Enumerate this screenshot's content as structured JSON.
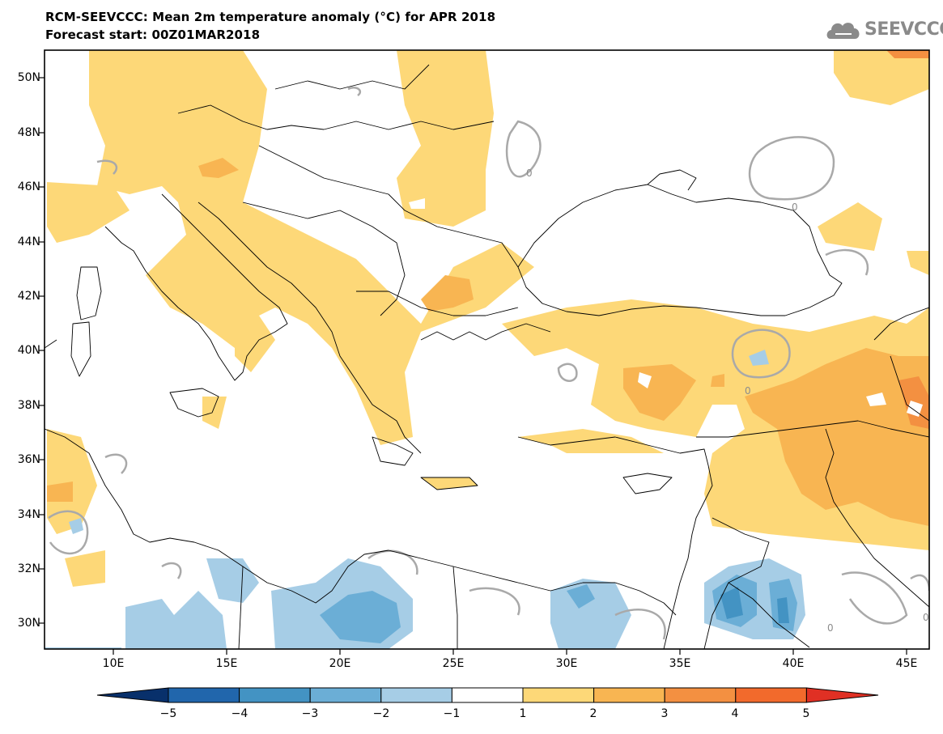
{
  "header": {
    "title_line1": "RCM-SEEVCCC: Mean 2m temperature anomaly (°C) for APR 2018",
    "title_line2": "Forecast start: 00Z01MAR2018",
    "logo_text": "SEEVCCC"
  },
  "map": {
    "lat_labels": [
      "50N",
      "48N",
      "46N",
      "44N",
      "42N",
      "40N",
      "38N",
      "36N",
      "34N",
      "32N",
      "30N"
    ],
    "lon_labels": [
      "10E",
      "15E",
      "20E",
      "25E",
      "30E",
      "35E",
      "40E",
      "45E"
    ],
    "contour_label": "0"
  },
  "colorbar": {
    "labels": [
      "−5",
      "−4",
      "−3",
      "−2",
      "−1",
      "1",
      "2",
      "3",
      "4",
      "5"
    ],
    "colors": [
      "#08306b",
      "#2166ac",
      "#4393c3",
      "#6baed6",
      "#a6cde6",
      "#ffffff",
      "#fdd878",
      "#f8b552",
      "#f39041",
      "#f26a2c",
      "#e03024"
    ]
  },
  "colors": {
    "warm1": "#fdd878",
    "warm2": "#f8b552",
    "warm3": "#f39041",
    "cool1": "#a6cde6",
    "cool2": "#6baed6",
    "cool3": "#4393c3",
    "zero_contour": "#a9a9a9",
    "coastline": "#000000"
  }
}
